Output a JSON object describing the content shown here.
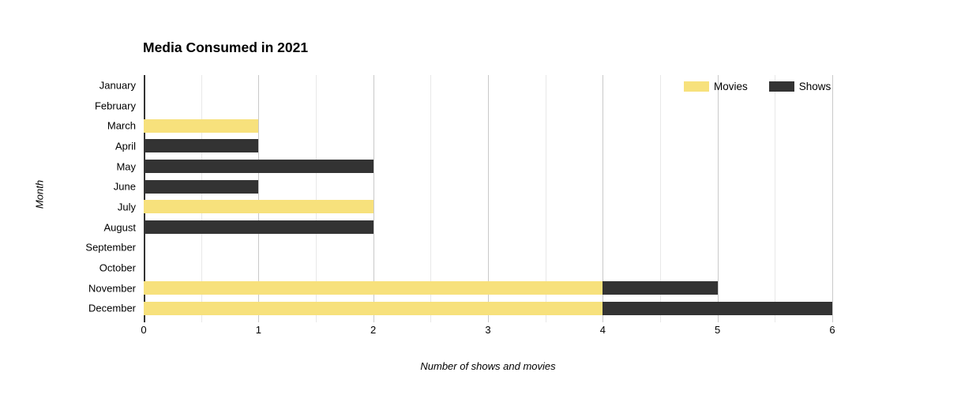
{
  "chart_data": {
    "type": "bar",
    "orientation": "horizontal",
    "stacked": true,
    "title": "Media Consumed in 2021",
    "xlabel": "Number of shows and movies",
    "ylabel": "Month",
    "categories": [
      "January",
      "February",
      "March",
      "April",
      "May",
      "June",
      "July",
      "August",
      "September",
      "October",
      "November",
      "December"
    ],
    "series": [
      {
        "name": "Movies",
        "color": "#F7E17C",
        "values": [
          0,
          0,
          1,
          0,
          0,
          0,
          2,
          0,
          0,
          0,
          4,
          4
        ]
      },
      {
        "name": "Shows",
        "color": "#333333",
        "values": [
          0,
          0,
          0,
          1,
          2,
          1,
          0,
          2,
          0,
          0,
          1,
          2
        ]
      }
    ],
    "xlim": [
      0,
      6
    ],
    "xticks": [
      0,
      1,
      2,
      3,
      4,
      5,
      6
    ],
    "minor_grid_step": 0.5,
    "grid": true,
    "legend_position": "top-right-inside",
    "axis_color": "#333333",
    "grid_major_color": "#c9c9c9",
    "grid_minor_color": "#e8e8e8"
  }
}
